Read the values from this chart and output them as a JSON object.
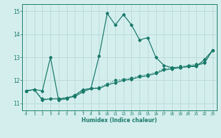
{
  "xlabel": "Humidex (Indice chaleur)",
  "ylabel": "",
  "x_ticks": [
    0,
    1,
    2,
    3,
    4,
    5,
    6,
    7,
    8,
    9,
    10,
    11,
    12,
    13,
    14,
    15,
    16,
    17,
    18,
    19,
    20,
    21,
    22,
    23
  ],
  "ylim": [
    10.7,
    15.3
  ],
  "yticks": [
    11,
    12,
    13,
    14,
    15
  ],
  "xlim": [
    -0.5,
    23.5
  ],
  "bg_color": "#d4eeee",
  "grid_color": "#b8d8d8",
  "line_color": "#1a7a6a",
  "series1_x": [
    0,
    1,
    2,
    3,
    4,
    5,
    6,
    7,
    8,
    9,
    10,
    11,
    12,
    13,
    14,
    15,
    16,
    17,
    18,
    19,
    20,
    21,
    22,
    23
  ],
  "series1_y": [
    11.55,
    11.6,
    11.55,
    13.0,
    11.15,
    11.2,
    11.35,
    11.6,
    11.65,
    13.05,
    14.9,
    14.4,
    14.85,
    14.4,
    13.75,
    13.85,
    13.0,
    12.65,
    12.55,
    12.55,
    12.6,
    12.6,
    12.9,
    13.3
  ],
  "series2_x": [
    0,
    1,
    2,
    3,
    4,
    5,
    6,
    7,
    8,
    9,
    10,
    11,
    12,
    13,
    14,
    15,
    16,
    17,
    18,
    19,
    20,
    21,
    22,
    23
  ],
  "series2_y": [
    11.55,
    11.6,
    11.15,
    11.2,
    11.2,
    11.25,
    11.3,
    11.5,
    11.65,
    11.65,
    11.8,
    11.9,
    12.0,
    12.05,
    12.15,
    12.2,
    12.3,
    12.45,
    12.5,
    12.55,
    12.6,
    12.65,
    12.75,
    13.3
  ],
  "series3_x": [
    0,
    1,
    2,
    3,
    4,
    5,
    6,
    7,
    8,
    9,
    10,
    11,
    12,
    13,
    14,
    15,
    16,
    17,
    18,
    19,
    20,
    21,
    22,
    23
  ],
  "series3_y": [
    11.55,
    11.6,
    11.2,
    11.2,
    11.2,
    11.25,
    11.35,
    11.55,
    11.65,
    11.7,
    11.85,
    12.0,
    12.05,
    12.1,
    12.2,
    12.25,
    12.35,
    12.5,
    12.55,
    12.6,
    12.65,
    12.7,
    12.8,
    13.3
  ]
}
